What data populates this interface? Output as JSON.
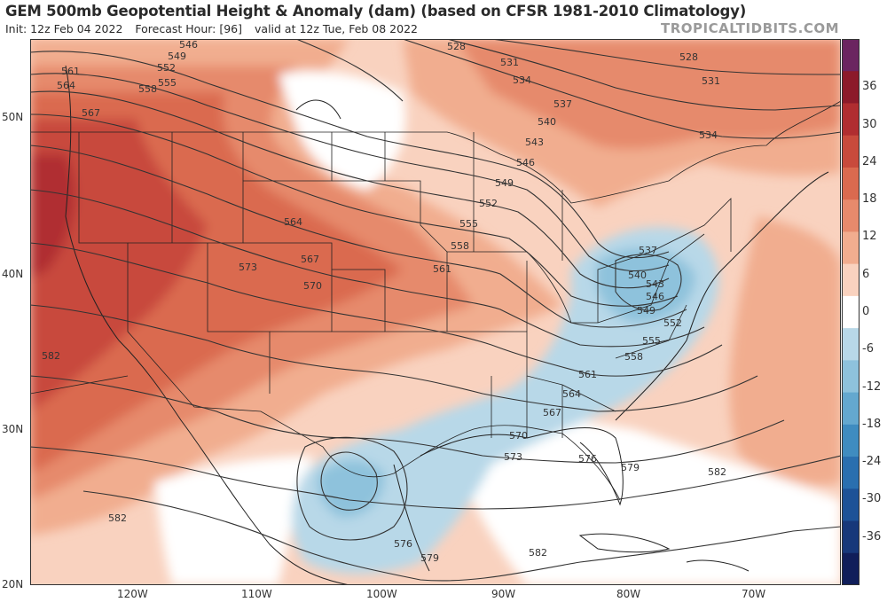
{
  "header": {
    "title": "GEM 500mb Geopotential Height & Anomaly (dam) (based on CFSR 1981-2010 Climatology)",
    "init": "Init: 12z Feb 04 2022",
    "forecast_hour": "Forecast Hour: [96]",
    "valid": "valid at 12z Tue, Feb 08 2022",
    "brand": "TROPICALTIDBITS.COM"
  },
  "axes": {
    "lat_labels": [
      "50N",
      "40N",
      "30N",
      "20N"
    ],
    "lon_labels": [
      "120W",
      "110W",
      "100W",
      "90W",
      "80W",
      "70W"
    ]
  },
  "colorbar": {
    "ticks": [
      "36",
      "30",
      "24",
      "18",
      "12",
      "6",
      "0",
      "-6",
      "-12",
      "-18",
      "-24",
      "-30",
      "-36"
    ],
    "colors": [
      "#6b2560",
      "#8c1a2a",
      "#b02d30",
      "#c84a3c",
      "#da6a4f",
      "#e68a6c",
      "#f1ad8f",
      "#f9d2bf",
      "#ffffff",
      "#b8d8e8",
      "#8ec2dc",
      "#64a8cf",
      "#3f8cc0",
      "#2a6faf",
      "#1d5297",
      "#17387a",
      "#101e5a"
    ]
  },
  "contours": [
    "528",
    "531",
    "534",
    "537",
    "540",
    "543",
    "546",
    "549",
    "552",
    "555",
    "558",
    "561",
    "564",
    "567",
    "570",
    "573",
    "576",
    "579",
    "582"
  ],
  "contour_labels_on_map": [
    "546",
    "549",
    "552",
    "555",
    "558",
    "561",
    "564",
    "567",
    "528",
    "531",
    "534",
    "537",
    "540",
    "543",
    "546",
    "549",
    "552",
    "555",
    "558",
    "561",
    "564",
    "567",
    "570",
    "573",
    "528",
    "531",
    "534",
    "537",
    "540",
    "543",
    "546",
    "549",
    "552",
    "555",
    "558",
    "561",
    "564",
    "567",
    "570",
    "573",
    "576",
    "579",
    "582",
    "582",
    "582",
    "576",
    "579",
    "582",
    "582",
    "546",
    "549"
  ]
}
